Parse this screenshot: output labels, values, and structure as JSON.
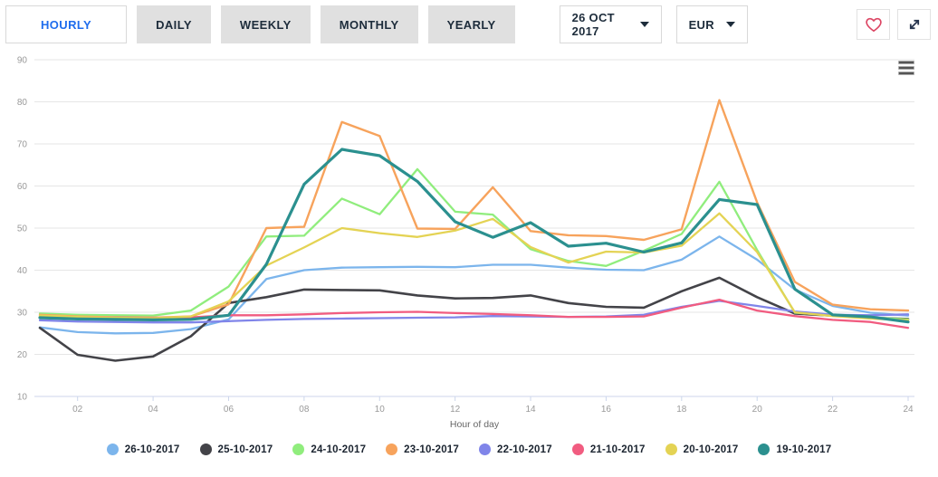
{
  "toolbar": {
    "tabs": [
      {
        "label": "HOURLY",
        "active": true
      },
      {
        "label": "DAILY",
        "active": false
      },
      {
        "label": "WEEKLY",
        "active": false
      },
      {
        "label": "MONTHLY",
        "active": false
      },
      {
        "label": "YEARLY",
        "active": false
      }
    ],
    "date_selector": {
      "value": "26 OCT 2017"
    },
    "currency_selector": {
      "value": "EUR"
    },
    "icons": {
      "favorite": "heart-outline-icon",
      "fullscreen": "expand-arrows-icon",
      "chart_menu": "hamburger-menu-icon"
    },
    "colors": {
      "active_tab_text": "#1f6ded",
      "inactive_tab_bg": "#e0e0e0",
      "heart": "#dc4664",
      "expand_arrows": "#27344e"
    }
  },
  "chart_data": {
    "type": "line",
    "title": "",
    "xlabel": "Hour of day",
    "ylabel": "",
    "ylim": [
      10,
      90
    ],
    "y_ticks": [
      10,
      20,
      30,
      40,
      50,
      60,
      70,
      80,
      90
    ],
    "x": [
      1,
      2,
      3,
      4,
      5,
      6,
      7,
      8,
      9,
      10,
      11,
      12,
      13,
      14,
      15,
      16,
      17,
      18,
      19,
      20,
      21,
      22,
      23,
      24
    ],
    "x_tick_hours": [
      2,
      4,
      6,
      8,
      10,
      12,
      14,
      16,
      18,
      20,
      22,
      24
    ],
    "x_tick_labels": [
      "02",
      "04",
      "06",
      "08",
      "10",
      "12",
      "14",
      "16",
      "18",
      "20",
      "22",
      "24"
    ],
    "grid": "horizontal",
    "legend_position": "bottom",
    "axis_line_color": "#ccd6eb",
    "gridline_color": "#e6e6e6",
    "series": [
      {
        "name": "26-10-2017",
        "color": "#7cb5ec",
        "width": 2.3,
        "values": [
          26.4,
          25.3,
          25.0,
          25.1,
          26.0,
          28.3,
          37.9,
          40.0,
          40.6,
          40.7,
          40.8,
          40.7,
          41.3,
          41.3,
          40.6,
          40.1,
          40.0,
          42.5,
          48.0,
          42.5,
          35.4,
          31.5,
          29.9,
          29.2
        ]
      },
      {
        "name": "25-10-2017",
        "color": "#434348",
        "width": 2.6,
        "values": [
          26.3,
          19.9,
          18.5,
          19.5,
          24.3,
          32.2,
          33.6,
          35.4,
          35.3,
          35.2,
          34.0,
          33.3,
          33.4,
          34.0,
          32.2,
          31.3,
          31.1,
          35.0,
          38.2,
          33.6,
          29.7,
          29.2,
          28.7,
          28.4
        ]
      },
      {
        "name": "24-10-2017",
        "color": "#90ed7d",
        "width": 2.3,
        "values": [
          29.7,
          29.4,
          29.3,
          29.2,
          30.4,
          36.1,
          48.0,
          48.2,
          57.0,
          53.3,
          64.0,
          53.9,
          53.2,
          45.0,
          42.2,
          41.0,
          44.6,
          48.6,
          61.0,
          44.8,
          29.9,
          29.3,
          28.8,
          28.3
        ]
      },
      {
        "name": "23-10-2017",
        "color": "#f7a35c",
        "width": 2.4,
        "values": [
          29.4,
          29.0,
          28.8,
          28.7,
          29.0,
          31.9,
          50.0,
          50.3,
          75.2,
          71.9,
          49.9,
          49.8,
          59.7,
          49.3,
          48.3,
          48.1,
          47.2,
          49.7,
          80.4,
          56.1,
          37.2,
          31.8,
          30.7,
          30.4
        ]
      },
      {
        "name": "22-10-2017",
        "color": "#8085e9",
        "width": 2.3,
        "values": [
          28.1,
          27.8,
          27.7,
          27.6,
          27.6,
          27.9,
          28.2,
          28.4,
          28.5,
          28.6,
          28.7,
          28.8,
          29.1,
          29.0,
          28.9,
          29.0,
          29.4,
          31.3,
          32.7,
          31.5,
          30.2,
          29.4,
          29.3,
          29.5
        ]
      },
      {
        "name": "21-10-2017",
        "color": "#f15c80",
        "width": 2.3,
        "values": [
          29.1,
          28.9,
          28.8,
          28.7,
          28.8,
          29.3,
          29.3,
          29.5,
          29.8,
          30.0,
          30.1,
          29.8,
          29.6,
          29.3,
          28.9,
          28.9,
          29.0,
          31.1,
          33.0,
          30.4,
          29.1,
          28.2,
          27.7,
          26.3
        ]
      },
      {
        "name": "20-10-2017",
        "color": "#e4d354",
        "width": 2.3,
        "values": [
          29.2,
          28.9,
          28.7,
          28.6,
          29.0,
          32.6,
          41.1,
          45.4,
          50.0,
          48.8,
          47.9,
          49.4,
          52.2,
          45.5,
          41.8,
          44.4,
          44.2,
          45.8,
          53.5,
          44.3,
          30.0,
          29.1,
          28.5,
          28.1
        ]
      },
      {
        "name": "19-10-2017",
        "color": "#2b908f",
        "width": 3.2,
        "values": [
          28.7,
          28.4,
          28.3,
          28.2,
          28.3,
          29.3,
          41.4,
          60.4,
          68.7,
          67.2,
          61.1,
          51.5,
          47.8,
          51.3,
          45.7,
          46.4,
          44.3,
          46.5,
          56.8,
          55.6,
          35.5,
          29.4,
          28.9,
          27.7
        ]
      }
    ]
  }
}
